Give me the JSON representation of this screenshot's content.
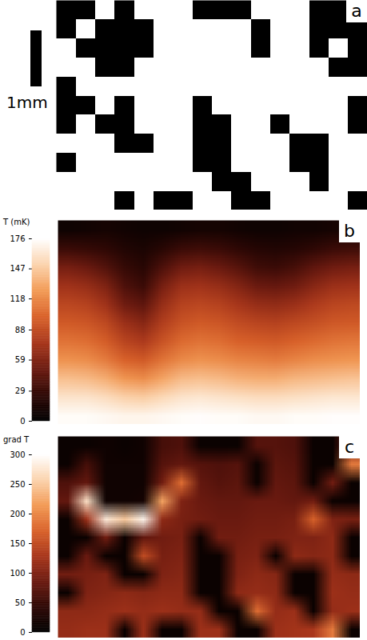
{
  "chart_data": [
    {
      "type": "image",
      "panel": "a",
      "scale_bar": "1mm",
      "tick_labels": false,
      "cells": [
        [
          1,
          1,
          0,
          1,
          0,
          0,
          0,
          1,
          1,
          1,
          0,
          0,
          0,
          1,
          1,
          0
        ],
        [
          1,
          0,
          1,
          1,
          1,
          0,
          0,
          0,
          0,
          0,
          1,
          0,
          0,
          1,
          1,
          1
        ],
        [
          0,
          1,
          1,
          1,
          1,
          0,
          0,
          0,
          0,
          0,
          1,
          0,
          0,
          1,
          0,
          1
        ],
        [
          0,
          0,
          1,
          1,
          0,
          0,
          0,
          0,
          0,
          0,
          0,
          0,
          0,
          0,
          1,
          1
        ],
        [
          1,
          0,
          0,
          0,
          0,
          0,
          0,
          0,
          0,
          0,
          0,
          0,
          0,
          0,
          0,
          0
        ],
        [
          1,
          1,
          0,
          1,
          0,
          0,
          0,
          1,
          0,
          0,
          0,
          0,
          0,
          0,
          0,
          1
        ],
        [
          1,
          0,
          1,
          1,
          0,
          0,
          0,
          1,
          1,
          0,
          0,
          1,
          0,
          0,
          0,
          1
        ],
        [
          0,
          0,
          0,
          1,
          1,
          0,
          0,
          1,
          1,
          0,
          0,
          0,
          1,
          1,
          0,
          0
        ],
        [
          1,
          0,
          0,
          0,
          0,
          0,
          0,
          1,
          1,
          0,
          0,
          0,
          1,
          1,
          0,
          0
        ],
        [
          0,
          0,
          0,
          0,
          0,
          0,
          0,
          0,
          1,
          1,
          0,
          0,
          0,
          1,
          0,
          0
        ],
        [
          0,
          0,
          0,
          1,
          0,
          1,
          1,
          0,
          0,
          1,
          1,
          0,
          0,
          0,
          0,
          1
        ]
      ]
    },
    {
      "type": "heatmap",
      "panel": "b",
      "colorbar_label": "T (mK)",
      "colorbar_range": [
        0,
        176
      ],
      "colorbar_ticks": [
        0,
        29,
        59,
        88,
        118,
        147,
        176
      ],
      "tick_labels": false,
      "cells": [
        [
          8,
          10,
          12,
          10,
          8,
          8,
          10,
          12,
          12,
          10,
          8,
          8,
          10,
          10,
          12,
          12
        ],
        [
          30,
          28,
          25,
          18,
          15,
          22,
          30,
          32,
          30,
          25,
          20,
          18,
          20,
          25,
          30,
          32
        ],
        [
          55,
          50,
          40,
          28,
          22,
          38,
          52,
          55,
          50,
          42,
          32,
          30,
          35,
          45,
          52,
          55
        ],
        [
          72,
          68,
          58,
          38,
          30,
          55,
          70,
          72,
          68,
          60,
          50,
          48,
          52,
          62,
          70,
          72
        ],
        [
          85,
          82,
          72,
          52,
          45,
          68,
          82,
          85,
          82,
          75,
          68,
          66,
          70,
          78,
          84,
          86
        ],
        [
          96,
          94,
          86,
          70,
          62,
          80,
          92,
          96,
          94,
          88,
          84,
          82,
          86,
          90,
          95,
          96
        ],
        [
          108,
          106,
          98,
          84,
          78,
          92,
          104,
          108,
          106,
          100,
          98,
          96,
          100,
          104,
          108,
          110
        ],
        [
          122,
          120,
          112,
          100,
          96,
          108,
          118,
          122,
          120,
          116,
          114,
          112,
          116,
          120,
          122,
          124
        ],
        [
          142,
          140,
          134,
          124,
          120,
          130,
          140,
          142,
          140,
          136,
          134,
          134,
          138,
          140,
          142,
          144
        ],
        [
          160,
          160,
          156,
          150,
          148,
          154,
          160,
          162,
          160,
          158,
          156,
          156,
          158,
          160,
          162,
          162
        ],
        [
          174,
          174,
          172,
          170,
          170,
          172,
          174,
          175,
          174,
          174,
          172,
          172,
          174,
          174,
          175,
          175
        ]
      ]
    },
    {
      "type": "heatmap",
      "panel": "c",
      "colorbar_label": "grad T",
      "colorbar_range": [
        0,
        300
      ],
      "colorbar_ticks": [
        0,
        50,
        100,
        150,
        200,
        250,
        300
      ],
      "tick_labels": false,
      "cells": [
        [
          10,
          10,
          15,
          10,
          15,
          60,
          65,
          10,
          10,
          10,
          70,
          70,
          65,
          10,
          10,
          90
        ],
        [
          10,
          60,
          15,
          15,
          15,
          70,
          80,
          70,
          65,
          70,
          10,
          75,
          70,
          10,
          10,
          190
        ],
        [
          65,
          80,
          15,
          15,
          15,
          90,
          180,
          80,
          70,
          75,
          10,
          80,
          75,
          10,
          90,
          10
        ],
        [
          80,
          270,
          15,
          15,
          20,
          220,
          100,
          85,
          80,
          80,
          85,
          85,
          80,
          90,
          10,
          10
        ],
        [
          10,
          120,
          280,
          250,
          290,
          110,
          95,
          90,
          85,
          85,
          90,
          90,
          95,
          170,
          100,
          95
        ],
        [
          10,
          10,
          90,
          10,
          80,
          90,
          95,
          10,
          90,
          90,
          95,
          95,
          100,
          100,
          110,
          10
        ],
        [
          10,
          85,
          10,
          10,
          150,
          95,
          100,
          10,
          10,
          95,
          100,
          10,
          110,
          105,
          110,
          10
        ],
        [
          90,
          95,
          100,
          10,
          10,
          100,
          105,
          10,
          10,
          100,
          110,
          105,
          10,
          10,
          115,
          110
        ],
        [
          10,
          100,
          105,
          110,
          105,
          110,
          110,
          10,
          10,
          110,
          115,
          110,
          10,
          10,
          120,
          115
        ],
        [
          110,
          110,
          115,
          120,
          115,
          120,
          115,
          115,
          10,
          10,
          180,
          115,
          120,
          10,
          115,
          120
        ],
        [
          115,
          120,
          120,
          10,
          120,
          10,
          10,
          120,
          120,
          10,
          10,
          120,
          125,
          130,
          190,
          10
        ]
      ]
    }
  ]
}
